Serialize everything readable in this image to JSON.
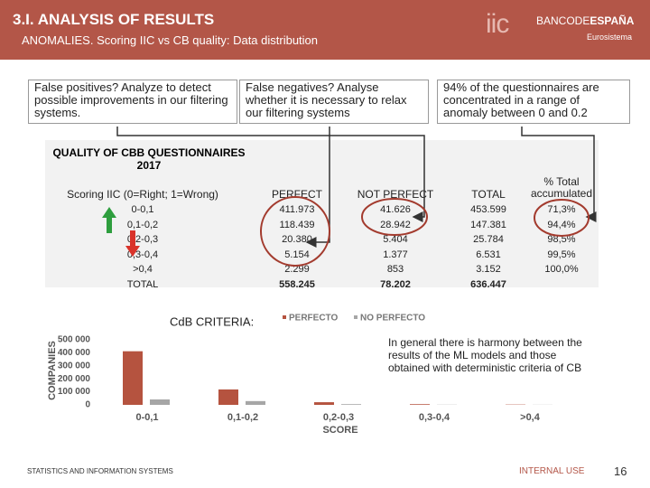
{
  "header": {
    "title": "3.I. ANALYSIS OF RESULTS",
    "subtitle": "ANOMALIES. Scoring IIC vs CB quality: Data distribution"
  },
  "logo": {
    "mark": "iic",
    "bank_prefix": "BANCODE",
    "bank_name": "ESPAÑA",
    "system": "Eurosistema"
  },
  "callouts": [
    "False positives? Analyze to detect possible improvements in our filtering systems.",
    "False negatives? Analyse whether it is necessary to relax our filtering systems",
    "94% of the questionnaires are concentrated in a range of anomaly between 0 and 0.2"
  ],
  "table": {
    "title": "QUALITY OF CBB QUESTIONNAIRES 2017",
    "headers": [
      "Scoring IIC (0=Right; 1=Wrong)",
      "PERFECT",
      "NOT PERFECT",
      "TOTAL",
      "% Total accumulated"
    ],
    "rows": [
      [
        "0-0,1",
        "411.973",
        "41.626",
        "453.599",
        "71,3%"
      ],
      [
        "0,1-0,2",
        "118.439",
        "28.942",
        "147.381",
        "94,4%"
      ],
      [
        "0,2-0,3",
        "20.380",
        "5.404",
        "25.784",
        "98,5%"
      ],
      [
        "0,3-0,4",
        "5.154",
        "1.377",
        "6.531",
        "99,5%"
      ],
      [
        ">0,4",
        "2.299",
        "853",
        "3.152",
        "100,0%"
      ],
      [
        "TOTAL",
        "558.245",
        "78.202",
        "636.447"
      ]
    ]
  },
  "chart_label": "CdB CRITERIA:",
  "chart_data": {
    "type": "bar",
    "categories": [
      "0-0,1",
      "0,1-0,2",
      "0,2-0,3",
      "0,3-0,4",
      ">0,4"
    ],
    "series": [
      {
        "name": "PERFECTO",
        "color": "#b5533f",
        "values": [
          411973,
          118439,
          20380,
          5154,
          2299
        ]
      },
      {
        "name": "NO PERFECTO",
        "color": "#a6a6a6",
        "values": [
          41626,
          28942,
          5404,
          1377,
          853
        ]
      }
    ],
    "y_label": "COMPANIES",
    "x_label": "SCORE",
    "ylim": [
      0,
      500000
    ],
    "yticks": [
      0,
      {
        "value": 100000,
        "label": "100 000"
      },
      {
        "value": 200000,
        "label": "200 000"
      },
      {
        "value": 300000,
        "label": "300 000"
      },
      {
        "value": 400000,
        "label": "400 000"
      },
      {
        "value": 500000,
        "label": "500 000"
      }
    ],
    "legend": "top"
  },
  "annotation": "In general there is harmony between the results of the ML models and those obtained with deterministic criteria of CB",
  "footer": {
    "left": "STATISTICS AND INFORMATION SYSTEMS",
    "right": "INTERNAL USE",
    "page": "16"
  }
}
